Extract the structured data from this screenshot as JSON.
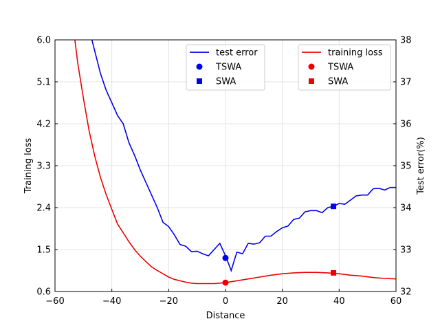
{
  "chart_data": {
    "type": "line",
    "title": "",
    "xlabel": "Distance",
    "ylabel_left": "Training loss",
    "ylabel_right": "Test error(%)",
    "xlim": [
      -60,
      60
    ],
    "ylim_left": [
      0.6,
      6.0
    ],
    "ylim_right": [
      32,
      38
    ],
    "xticks": [
      -60,
      -40,
      -20,
      0,
      20,
      40,
      60
    ],
    "xtick_labels": [
      "−60",
      "−40",
      "−20",
      "0",
      "20",
      "40",
      "60"
    ],
    "yticks_left": [
      0.6,
      1.5,
      2.4,
      3.3,
      4.2,
      5.1,
      6.0
    ],
    "ytick_labels_left": [
      "0.6",
      "1.5",
      "2.4",
      "3.3",
      "4.2",
      "5.1",
      "6.0"
    ],
    "yticks_right": [
      32,
      33,
      34,
      35,
      36,
      37,
      38
    ],
    "ytick_labels_right": [
      "32",
      "33",
      "34",
      "35",
      "36",
      "37",
      "38"
    ],
    "grid": true,
    "colors": {
      "test": "#0000ee",
      "train": "#ee0000"
    },
    "series": [
      {
        "name": "test error",
        "axis": "right",
        "color": "#0000ee",
        "x": [
          -47,
          -44,
          -42,
          -40,
          -38,
          -36,
          -34,
          -32,
          -30,
          -28,
          -26,
          -24,
          -22,
          -20,
          -18,
          -16,
          -14,
          -12,
          -10,
          -8,
          -6,
          -4,
          -2,
          0,
          2,
          4,
          6,
          8,
          10,
          12,
          14,
          16,
          18,
          20,
          22,
          24,
          26,
          28,
          30,
          32,
          34,
          36,
          38,
          40,
          42,
          44,
          46,
          48,
          50,
          52,
          54,
          56,
          58,
          60
        ],
        "y": [
          38.0,
          37.2,
          36.8,
          36.5,
          36.2,
          36.0,
          35.55,
          35.25,
          34.9,
          34.6,
          34.3,
          34.0,
          33.65,
          33.55,
          33.35,
          33.12,
          33.08,
          32.95,
          32.96,
          32.9,
          32.85,
          33.0,
          33.15,
          32.85,
          32.5,
          32.94,
          32.9,
          33.15,
          33.13,
          33.16,
          33.32,
          33.32,
          33.43,
          33.52,
          33.56,
          33.72,
          33.75,
          33.9,
          33.93,
          33.93,
          33.88,
          34.0,
          34.03,
          34.1,
          34.08,
          34.18,
          34.28,
          34.3,
          34.3,
          34.45,
          34.46,
          34.42,
          34.48,
          34.48
        ]
      },
      {
        "name": "training loss",
        "axis": "left",
        "color": "#ee0000",
        "x": [
          -53,
          -52,
          -50,
          -48,
          -46,
          -44,
          -42,
          -40,
          -38,
          -36,
          -34,
          -32,
          -30,
          -28,
          -26,
          -24,
          -22,
          -20,
          -18,
          -16,
          -14,
          -12,
          -10,
          -8,
          -6,
          -4,
          -2,
          0,
          4,
          8,
          12,
          16,
          20,
          24,
          28,
          32,
          36,
          40,
          44,
          48,
          52,
          56,
          60
        ],
        "y": [
          6.0,
          5.5,
          4.75,
          4.05,
          3.5,
          3.05,
          2.68,
          2.36,
          2.05,
          1.86,
          1.67,
          1.5,
          1.36,
          1.24,
          1.13,
          1.05,
          0.98,
          0.91,
          0.86,
          0.83,
          0.8,
          0.78,
          0.77,
          0.77,
          0.77,
          0.77,
          0.78,
          0.79,
          0.83,
          0.87,
          0.91,
          0.95,
          0.98,
          1.0,
          1.01,
          1.01,
          1.0,
          0.98,
          0.95,
          0.93,
          0.9,
          0.88,
          0.87
        ]
      }
    ],
    "markers": [
      {
        "label": "TSWA",
        "series": "test error",
        "shape": "circle",
        "x": 0,
        "y": 32.8,
        "axis": "right",
        "color": "#0000ee"
      },
      {
        "label": "SWA",
        "series": "test error",
        "shape": "square",
        "x": 38,
        "y": 34.03,
        "axis": "right",
        "color": "#0000ee"
      },
      {
        "label": "TSWA",
        "series": "training loss",
        "shape": "circle",
        "x": 0,
        "y": 0.79,
        "axis": "left",
        "color": "#ee0000"
      },
      {
        "label": "SWA",
        "series": "training loss",
        "shape": "square",
        "x": 38,
        "y": 1.0,
        "axis": "left",
        "color": "#ee0000"
      }
    ],
    "legends": [
      {
        "placement": "top-center",
        "entries": [
          {
            "label": "test error",
            "kind": "line",
            "color": "#0000ee"
          },
          {
            "label": "TSWA",
            "kind": "circle",
            "color": "#0000ee"
          },
          {
            "label": "SWA",
            "kind": "square",
            "color": "#0000ee"
          }
        ]
      },
      {
        "placement": "top-right",
        "entries": [
          {
            "label": "training loss",
            "kind": "line",
            "color": "#ee0000"
          },
          {
            "label": "TSWA",
            "kind": "circle",
            "color": "#ee0000"
          },
          {
            "label": "SWA",
            "kind": "square",
            "color": "#ee0000"
          }
        ]
      }
    ]
  }
}
